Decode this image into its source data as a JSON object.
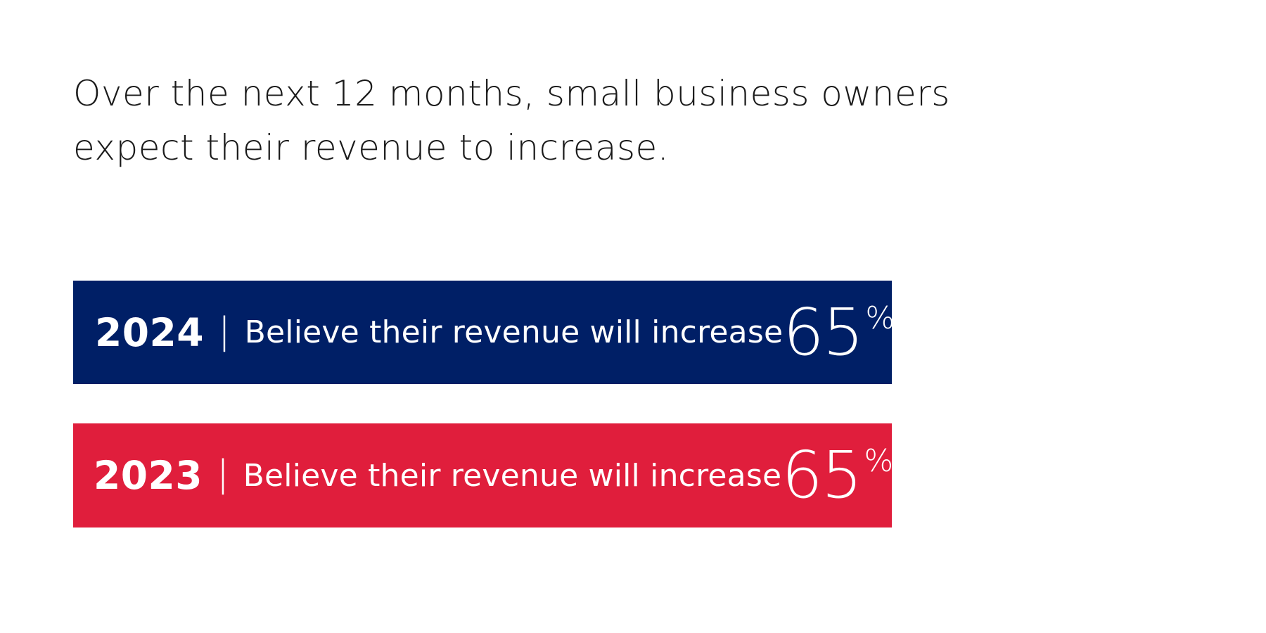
{
  "headline": "Over the next 12 months, small business owners expect their revenue to increase.",
  "colors": {
    "background": "#ffffff",
    "headline_text": "#1a1a1a",
    "bar_2024": "#001f66",
    "bar_2023": "#e01e3c",
    "bar_text": "#ffffff"
  },
  "stats": [
    {
      "year": "2024",
      "separator": "|",
      "label": "Believe their revenue will increase",
      "value": "65",
      "unit": "%",
      "percent": 65
    },
    {
      "year": "2023",
      "separator": "|",
      "label": "Believe their revenue will increase",
      "value": "65",
      "unit": "%",
      "percent": 65
    }
  ]
}
